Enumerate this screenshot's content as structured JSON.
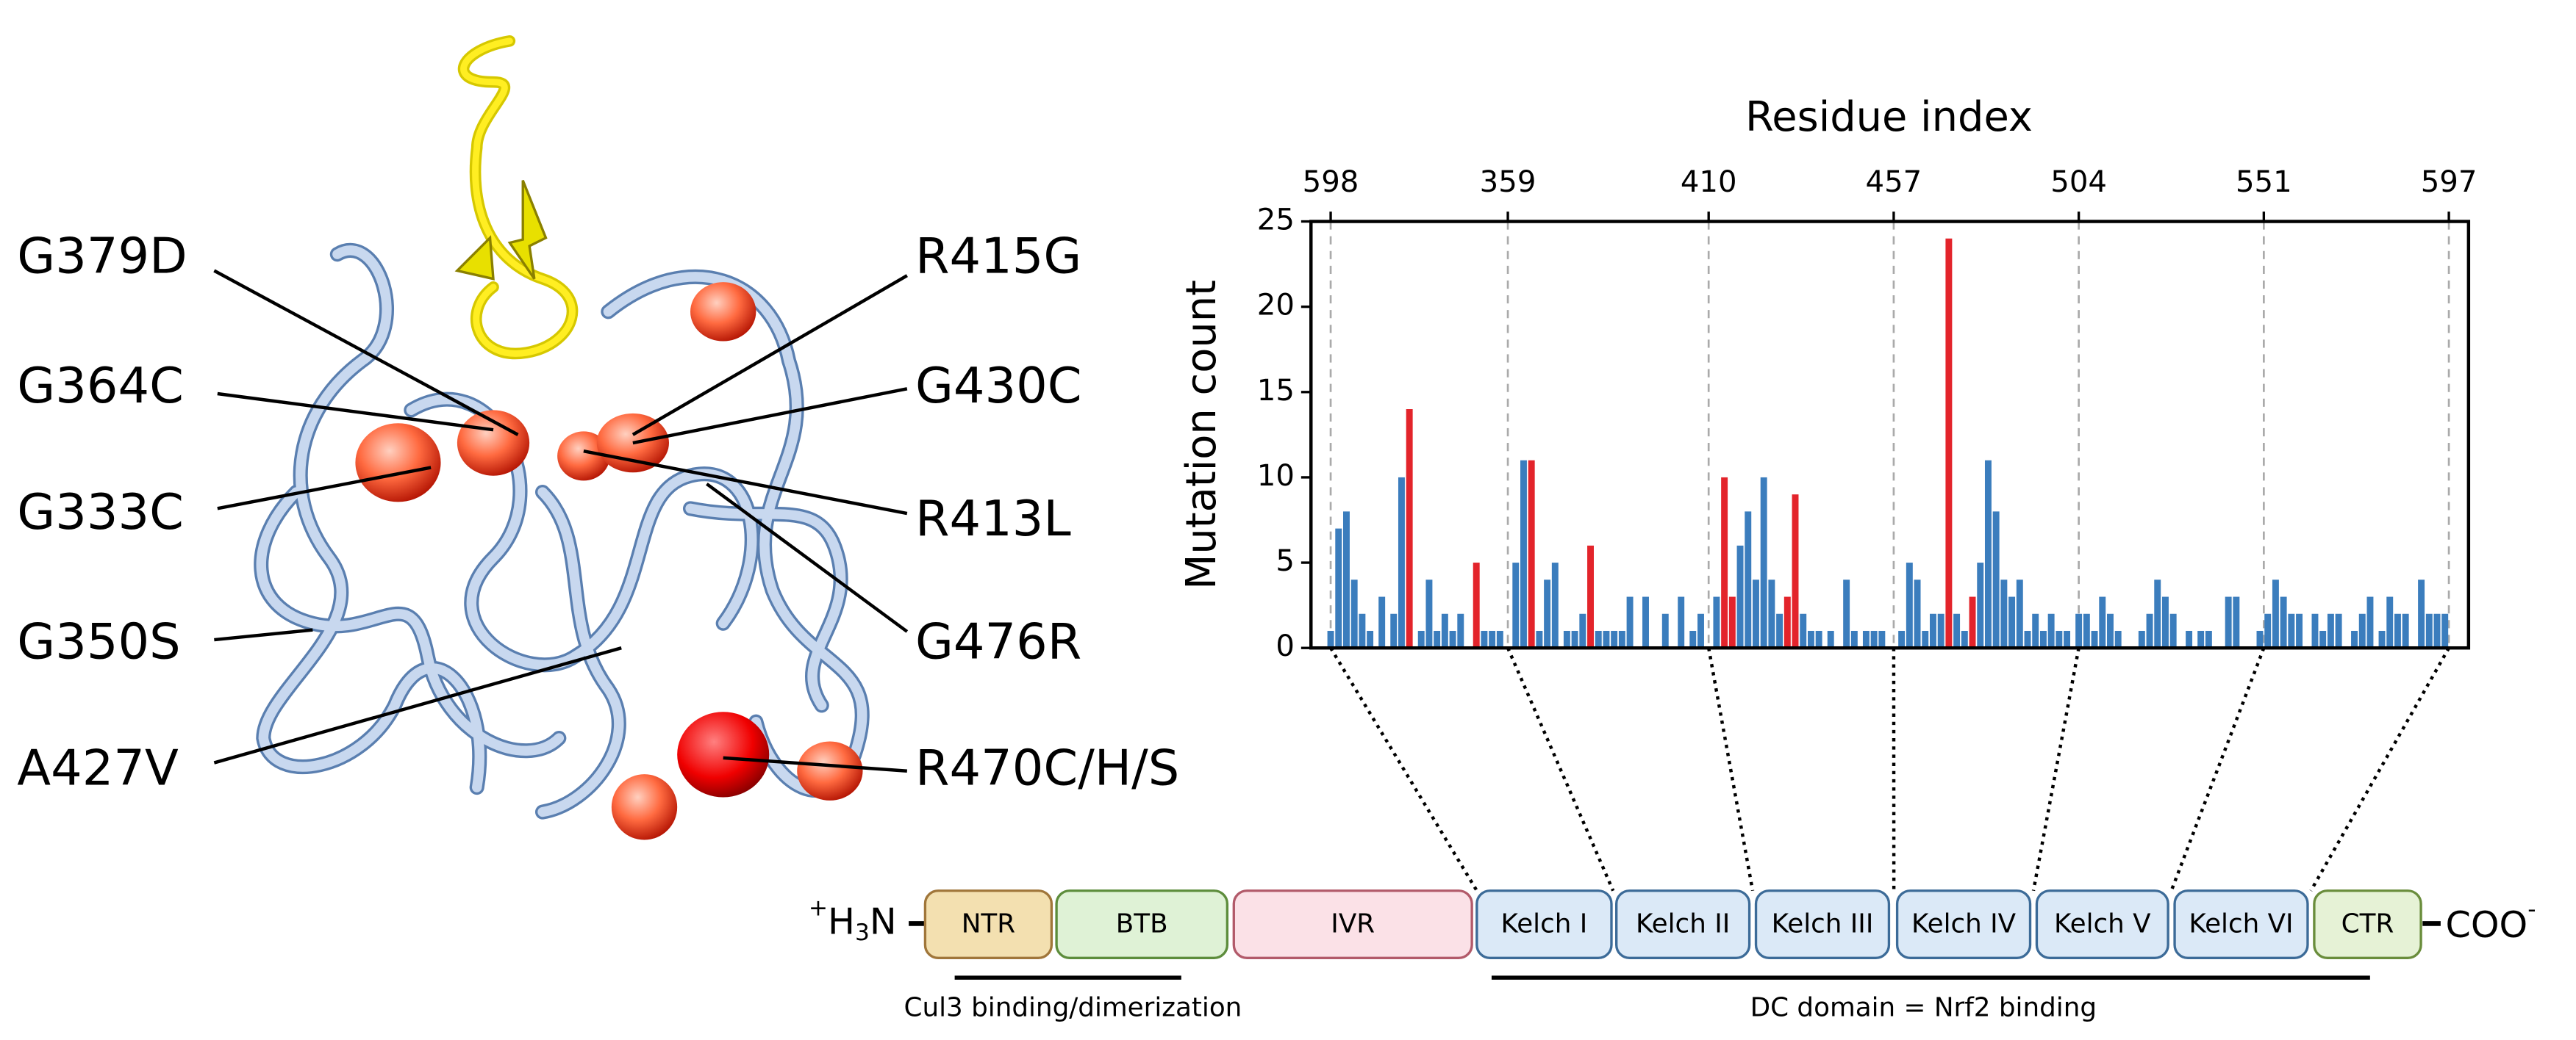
{
  "structure": {
    "labels": [
      "G379D",
      "G364C",
      "G333C",
      "G350S",
      "A427V",
      "R415G",
      "G430C",
      "R413L",
      "G476R",
      "R470C/H/S"
    ]
  },
  "chart_data": {
    "type": "bar",
    "xlabel": "Residue index",
    "ylabel": "Mutation count",
    "xlim": [
      0,
      294
    ],
    "xticks": [
      {
        "value": 5,
        "label": "598"
      },
      {
        "value": 50,
        "label": "359"
      },
      {
        "value": 101,
        "label": "410"
      },
      {
        "value": 148,
        "label": "457"
      },
      {
        "value": 195,
        "label": "504"
      },
      {
        "value": 242,
        "label": "551"
      },
      {
        "value": 289,
        "label": "597"
      }
    ],
    "ylim": [
      0,
      25
    ],
    "yticks": [
      0,
      5,
      10,
      15,
      20,
      25
    ],
    "grid": true,
    "series": [
      {
        "color": "#3b7dbd",
        "x": [
          5,
          7,
          9,
          11,
          13,
          15,
          18,
          21,
          23,
          28,
          30,
          32,
          34,
          36,
          38,
          44,
          46,
          48,
          52,
          54,
          58,
          60,
          62,
          65,
          67,
          69,
          73,
          75,
          77,
          79,
          81,
          85,
          90,
          94,
          97,
          99,
          103,
          109,
          111,
          113,
          115,
          117,
          119,
          125,
          127,
          129,
          132,
          136,
          138,
          141,
          143,
          145,
          150,
          152,
          154,
          156,
          158,
          160,
          164,
          166,
          170,
          172,
          174,
          176,
          178,
          180,
          182,
          184,
          186,
          188,
          190,
          192,
          195,
          197,
          199,
          201,
          203,
          205,
          211,
          213,
          215,
          217,
          219,
          223,
          226,
          228,
          233,
          235,
          241,
          243,
          245,
          247,
          249,
          251,
          255,
          257,
          259,
          261,
          265,
          267,
          269,
          272,
          274,
          276,
          278,
          282,
          284,
          286,
          288
        ],
        "values": [
          1,
          7,
          8,
          4,
          2,
          1,
          3,
          2,
          10,
          1,
          4,
          1,
          2,
          1,
          2,
          1,
          1,
          1,
          5,
          11,
          1,
          4,
          5,
          1,
          1,
          2,
          1,
          1,
          1,
          1,
          3,
          3,
          2,
          3,
          1,
          2,
          3,
          6,
          8,
          4,
          10,
          4,
          2,
          2,
          1,
          1,
          1,
          4,
          1,
          1,
          1,
          1,
          1,
          5,
          4,
          1,
          2,
          2,
          2,
          1,
          5,
          11,
          8,
          4,
          3,
          4,
          1,
          2,
          1,
          2,
          1,
          1,
          2,
          2,
          1,
          3,
          2,
          1,
          1,
          2,
          4,
          3,
          2,
          1,
          1,
          1,
          3,
          3,
          1,
          2,
          4,
          3,
          2,
          2,
          2,
          1,
          2,
          2,
          1,
          2,
          3,
          1,
          3,
          2,
          2,
          4,
          2,
          2,
          2
        ]
      },
      {
        "color": "#e3242b",
        "x": [
          25,
          42,
          56,
          71,
          105,
          107,
          121,
          123,
          162,
          168
        ],
        "values": [
          14,
          5,
          11,
          6,
          10,
          3,
          3,
          9,
          24,
          3
        ]
      }
    ]
  },
  "domains": {
    "n_term": [
      "+",
      "H",
      "3",
      "N"
    ],
    "boxes": [
      "NTR",
      "BTB",
      "IVR",
      "Kelch I",
      "Kelch II",
      "Kelch III",
      "Kelch IV",
      "Kelch V",
      "Kelch VI",
      "CTR"
    ],
    "c_term": [
      "COO",
      "-"
    ],
    "annotations": [
      "Cul3 binding/dimerization",
      "DC domain = Nrf2 binding"
    ]
  }
}
